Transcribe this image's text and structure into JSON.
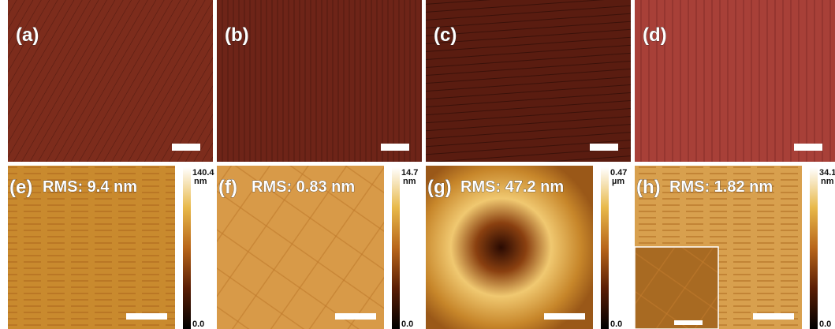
{
  "figure": {
    "top": [
      {
        "label": "(a)"
      },
      {
        "label": "(b)"
      },
      {
        "label": "(c)"
      },
      {
        "label": "(d)"
      }
    ],
    "bottom": [
      {
        "label": "(e)",
        "rms": "RMS: 9.4 nm",
        "cbar_max": "140.4",
        "cbar_unit": "nm",
        "cbar_min": "0.0"
      },
      {
        "label": "(f)",
        "rms": "RMS: 0.83 nm",
        "cbar_max": "14.7",
        "cbar_unit": "nm",
        "cbar_min": "0.0"
      },
      {
        "label": "(g)",
        "rms": "RMS: 47.2 nm",
        "cbar_max": "0.47",
        "cbar_unit": "µm",
        "cbar_min": "0.0"
      },
      {
        "label": "(h)",
        "rms": "RMS: 1.82 nm",
        "cbar_max": "34.1",
        "cbar_unit": "nm",
        "cbar_min": "0.0"
      }
    ]
  }
}
